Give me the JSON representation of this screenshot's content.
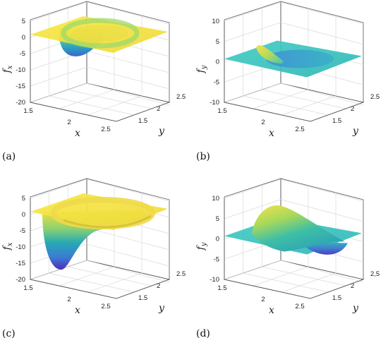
{
  "colors": {
    "viridis_top": "#f6e43a",
    "viridis_mid": "#33b8a8",
    "viridis_low": "#4e4fc8",
    "plane_fx": "#f4e34a",
    "plane_fy": "#3cc6c0"
  },
  "panels": [
    {
      "label": "(a)",
      "zlabel_main": "f",
      "zlabel_sub": "x",
      "xlabel": "x",
      "ylabel": "y",
      "x_ticks": [
        "1.5",
        "2",
        "2.5"
      ],
      "y_ticks": [
        "1.5",
        "2",
        "2.5"
      ],
      "z_ticks": [
        "5",
        "0",
        "-5",
        "-10",
        "-15",
        "-20"
      ]
    },
    {
      "label": "(b)",
      "zlabel_main": "f",
      "zlabel_sub": "y",
      "xlabel": "x",
      "ylabel": "y",
      "x_ticks": [
        "1.5",
        "2",
        "2.5"
      ],
      "y_ticks": [
        "1.5",
        "2",
        "2.5"
      ],
      "z_ticks": [
        "10",
        "5",
        "0",
        "-5",
        "-10"
      ]
    },
    {
      "label": "(c)",
      "zlabel_main": "f",
      "zlabel_sub": "x",
      "xlabel": "x",
      "ylabel": "y",
      "x_ticks": [
        "1.5",
        "2",
        "2.5"
      ],
      "y_ticks": [
        "1.5",
        "2",
        "2.5"
      ],
      "z_ticks": [
        "5",
        "0",
        "-5",
        "-10",
        "-15",
        "-20"
      ]
    },
    {
      "label": "(d)",
      "zlabel_main": "f",
      "zlabel_sub": "y",
      "xlabel": "x",
      "ylabel": "y",
      "x_ticks": [
        "1.5",
        "2",
        "2.5"
      ],
      "y_ticks": [
        "1.5",
        "2",
        "2,5"
      ],
      "z_ticks": [
        "10",
        "5",
        "0",
        "-5",
        "-10"
      ]
    }
  ],
  "chart_data": [
    {
      "type": "surface",
      "title": "",
      "xlabel": "x",
      "ylabel": "y",
      "zlabel": "f_x",
      "xlim": [
        1.5,
        2.7
      ],
      "ylim": [
        1.3,
        2.6
      ],
      "zlim": [
        -20,
        5
      ],
      "grid": true,
      "series": [
        {
          "z_plateau": 0,
          "z_min": -5
        }
      ]
    },
    {
      "type": "surface",
      "title": "",
      "xlabel": "x",
      "ylabel": "y",
      "zlabel": "f_y",
      "xlim": [
        1.5,
        2.7
      ],
      "ylim": [
        1.3,
        2.6
      ],
      "zlim": [
        -10,
        10
      ],
      "grid": true,
      "series": [
        {
          "z_plateau": 0,
          "z_min": -1,
          "z_max": 4
        }
      ]
    },
    {
      "type": "surface",
      "title": "",
      "xlabel": "x",
      "ylabel": "y",
      "zlabel": "f_x",
      "xlim": [
        1.5,
        2.7
      ],
      "ylim": [
        1.3,
        2.6
      ],
      "zlim": [
        -20,
        5
      ],
      "grid": true,
      "series": [
        {
          "z_plateau": 0,
          "z_min": -17
        }
      ]
    },
    {
      "type": "surface",
      "title": "",
      "xlabel": "x",
      "ylabel": "y",
      "zlabel": "f_y",
      "xlim": [
        1.5,
        2.7
      ],
      "ylim": [
        1.3,
        2.6
      ],
      "zlim": [
        -10,
        10
      ],
      "grid": true,
      "series": [
        {
          "z_plateau": 0,
          "z_min": -4,
          "z_max": 7
        }
      ]
    }
  ]
}
